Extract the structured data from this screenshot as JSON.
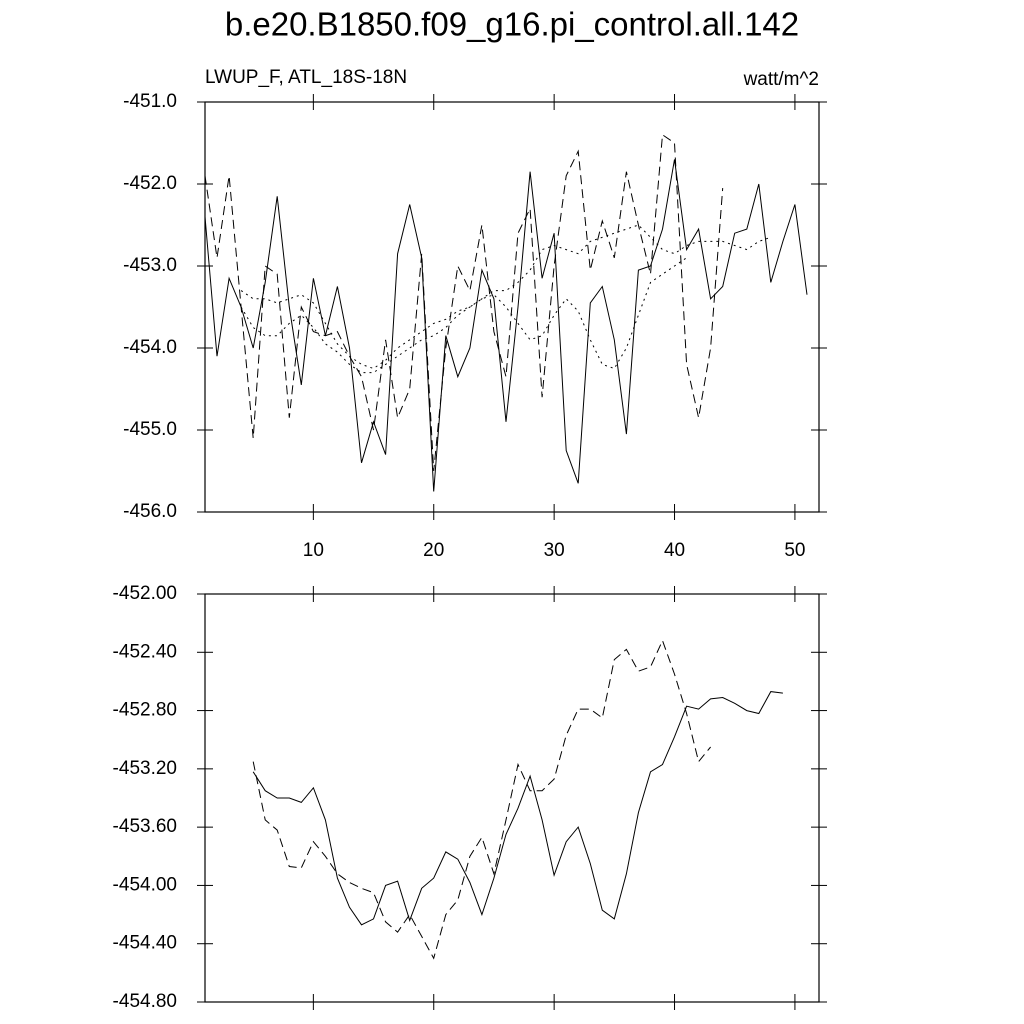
{
  "chart_data": [
    {
      "type": "line",
      "title": "b.e20.B1850.f09_g16.pi_control.all.142",
      "subtitle": "LWUP_F, ATL_18S-18N",
      "units": "watt/m^2",
      "xlim": [
        1,
        52
      ],
      "xticks": [
        10,
        20,
        30,
        40,
        50
      ],
      "xtick_labels": true,
      "ylim": [
        -456,
        -451
      ],
      "yticks": [
        {
          "value": -456,
          "label": "-456.0"
        },
        {
          "value": -455,
          "label": "-455.0"
        },
        {
          "value": -454,
          "label": "-454.0"
        },
        {
          "value": -453,
          "label": "-453.0"
        },
        {
          "value": -452,
          "label": "-452.0"
        },
        {
          "value": -451,
          "label": "-451.0"
        }
      ],
      "series": [
        {
          "color": "#000000",
          "dash": "solid",
          "x": [
            1,
            2,
            3,
            4,
            5,
            6,
            7,
            8,
            9,
            10,
            11,
            12,
            13,
            14,
            15,
            16,
            17,
            18,
            19,
            20,
            21,
            22,
            23,
            24,
            25,
            26,
            27,
            28,
            29,
            30,
            31,
            32,
            33,
            34,
            35,
            36,
            37,
            38,
            39,
            40,
            41,
            42,
            43,
            44,
            45,
            46,
            47,
            48,
            49,
            50,
            51
          ],
          "values": [
            -452.4,
            -454.1,
            -453.15,
            -453.5,
            -454.0,
            -453.2,
            -452.15,
            -453.5,
            -454.45,
            -453.15,
            -453.85,
            -453.25,
            -454.0,
            -455.4,
            -454.9,
            -455.3,
            -452.85,
            -452.25,
            -452.9,
            -455.75,
            -453.85,
            -454.35,
            -454.0,
            -453.05,
            -453.4,
            -454.9,
            -453.5,
            -451.85,
            -453.15,
            -452.6,
            -455.25,
            -455.65,
            -453.45,
            -453.25,
            -453.9,
            -455.05,
            -453.05,
            -453.0,
            -452.55,
            -451.7,
            -452.8,
            -452.55,
            -453.4,
            -453.25,
            -452.6,
            -452.55,
            -452.0,
            -453.2,
            -452.7,
            -452.25,
            -453.35
          ]
        },
        {
          "color": "#000000",
          "dash": "dashed",
          "x": [
            1,
            2,
            3,
            4,
            5,
            6,
            7,
            8,
            9,
            10,
            11,
            12,
            13,
            14,
            15,
            16,
            17,
            18,
            19,
            20,
            21,
            22,
            23,
            24,
            25,
            26,
            27,
            28,
            29,
            30,
            31,
            32,
            33,
            34,
            35,
            36,
            37,
            38,
            39,
            40,
            41,
            42,
            43,
            44
          ],
          "values": [
            -451.9,
            -452.9,
            -451.9,
            -453.5,
            -455.1,
            -453.0,
            -453.1,
            -454.85,
            -453.5,
            -453.8,
            -453.85,
            -453.8,
            -454.1,
            -454.35,
            -455.0,
            -453.9,
            -454.85,
            -454.5,
            -452.85,
            -455.5,
            -454.0,
            -453.0,
            -453.3,
            -452.5,
            -453.8,
            -454.35,
            -452.6,
            -452.3,
            -454.6,
            -453.0,
            -451.9,
            -451.6,
            -453.05,
            -452.45,
            -452.9,
            -451.85,
            -452.5,
            -453.1,
            -451.4,
            -451.5,
            -454.2,
            -454.85,
            -454.0,
            -452.05
          ]
        },
        {
          "color": "#000000",
          "dash": "dotted",
          "x": [
            4,
            5,
            6,
            7,
            8,
            9,
            10,
            11,
            12,
            13,
            14,
            15,
            16,
            17,
            18,
            19,
            20,
            21,
            22,
            23,
            24,
            25,
            26,
            27,
            28,
            29,
            30,
            31,
            32,
            33,
            34,
            35,
            36,
            37,
            38,
            39,
            40,
            41,
            42,
            43,
            44,
            45,
            46,
            47,
            48
          ],
          "values": [
            -453.3,
            -453.4,
            -453.4,
            -453.45,
            -453.4,
            -453.35,
            -453.45,
            -453.7,
            -453.95,
            -454.1,
            -454.2,
            -454.25,
            -454.15,
            -454.0,
            -453.9,
            -453.8,
            -453.7,
            -453.65,
            -453.55,
            -453.5,
            -453.4,
            -453.3,
            -453.3,
            -453.2,
            -453.05,
            -452.8,
            -452.75,
            -452.8,
            -452.85,
            -452.7,
            -452.65,
            -452.6,
            -452.55,
            -452.5,
            -452.65,
            -452.8,
            -452.85,
            -452.75,
            -452.7,
            -452.7,
            -452.7,
            -452.75,
            -452.8,
            -452.7,
            -452.65
          ]
        },
        {
          "color": "#000000",
          "dash": "dotted",
          "x": [
            4,
            5,
            6,
            7,
            8,
            9,
            10,
            11,
            12,
            13,
            14,
            15,
            16,
            17,
            18,
            19,
            20,
            21,
            22,
            23,
            24,
            25,
            26,
            27,
            28,
            29,
            30,
            31,
            32,
            33,
            34,
            35,
            36,
            37,
            38,
            39,
            40,
            41
          ],
          "values": [
            -453.5,
            -453.75,
            -453.85,
            -453.85,
            -453.7,
            -453.6,
            -453.75,
            -453.95,
            -454.05,
            -454.2,
            -454.3,
            -454.3,
            -454.2,
            -454.1,
            -454.0,
            -453.9,
            -453.85,
            -453.75,
            -453.6,
            -453.5,
            -453.4,
            -453.35,
            -453.5,
            -453.7,
            -453.9,
            -453.85,
            -453.6,
            -453.4,
            -453.55,
            -453.9,
            -454.2,
            -454.25,
            -454.0,
            -453.6,
            -453.2,
            -453.1,
            -453.0,
            -452.9
          ]
        }
      ]
    },
    {
      "type": "line",
      "xlim": [
        1,
        52
      ],
      "xticks": [
        10,
        20,
        30,
        40,
        50
      ],
      "xtick_labels": false,
      "ylim": [
        -454.8,
        -452
      ],
      "yticks": [
        {
          "value": -454.8,
          "label": "-454.80"
        },
        {
          "value": -454.4,
          "label": "-454.40"
        },
        {
          "value": -454,
          "label": "-454.00"
        },
        {
          "value": -453.6,
          "label": "-453.60"
        },
        {
          "value": -453.2,
          "label": "-453.20"
        },
        {
          "value": -452.8,
          "label": "-452.80"
        },
        {
          "value": -452.4,
          "label": "-452.40"
        },
        {
          "value": -452,
          "label": "-452.00"
        }
      ],
      "series": [
        {
          "color": "#000000",
          "dash": "solid",
          "x": [
            5,
            6,
            7,
            8,
            9,
            10,
            11,
            12,
            13,
            14,
            15,
            16,
            17,
            18,
            19,
            20,
            21,
            22,
            23,
            24,
            25,
            26,
            27,
            28,
            29,
            30,
            31,
            32,
            33,
            34,
            35,
            36,
            37,
            38,
            39,
            40,
            41,
            42,
            43,
            44,
            45,
            46,
            47,
            48,
            49
          ],
          "values": [
            -453.22,
            -453.35,
            -453.4,
            -453.4,
            -453.43,
            -453.33,
            -453.55,
            -453.95,
            -454.15,
            -454.27,
            -454.23,
            -454.0,
            -453.97,
            -454.24,
            -454.02,
            -453.95,
            -453.77,
            -453.82,
            -453.98,
            -454.2,
            -453.95,
            -453.65,
            -453.47,
            -453.25,
            -453.55,
            -453.93,
            -453.7,
            -453.6,
            -453.85,
            -454.17,
            -454.23,
            -453.92,
            -453.5,
            -453.22,
            -453.17,
            -452.98,
            -452.77,
            -452.79,
            -452.72,
            -452.71,
            -452.75,
            -452.8,
            -452.82,
            -452.67,
            -452.68
          ]
        },
        {
          "color": "#000000",
          "dash": "dashed",
          "x": [
            5,
            6,
            7,
            8,
            9,
            10,
            11,
            12,
            13,
            14,
            15,
            16,
            17,
            18,
            19,
            20,
            21,
            22,
            23,
            24,
            25,
            26,
            27,
            28,
            29,
            30,
            31,
            32,
            33,
            34,
            35,
            36,
            37,
            38,
            39,
            40,
            41,
            42,
            43
          ],
          "values": [
            -453.15,
            -453.55,
            -453.62,
            -453.87,
            -453.88,
            -453.7,
            -453.8,
            -453.92,
            -453.98,
            -454.02,
            -454.05,
            -454.25,
            -454.32,
            -454.2,
            -454.35,
            -454.5,
            -454.2,
            -454.1,
            -453.8,
            -453.67,
            -453.92,
            -453.55,
            -453.17,
            -453.35,
            -453.35,
            -453.27,
            -452.97,
            -452.79,
            -452.79,
            -452.85,
            -452.45,
            -452.38,
            -452.53,
            -452.5,
            -452.32,
            -452.55,
            -452.82,
            -453.15,
            -453.05
          ]
        }
      ]
    }
  ]
}
